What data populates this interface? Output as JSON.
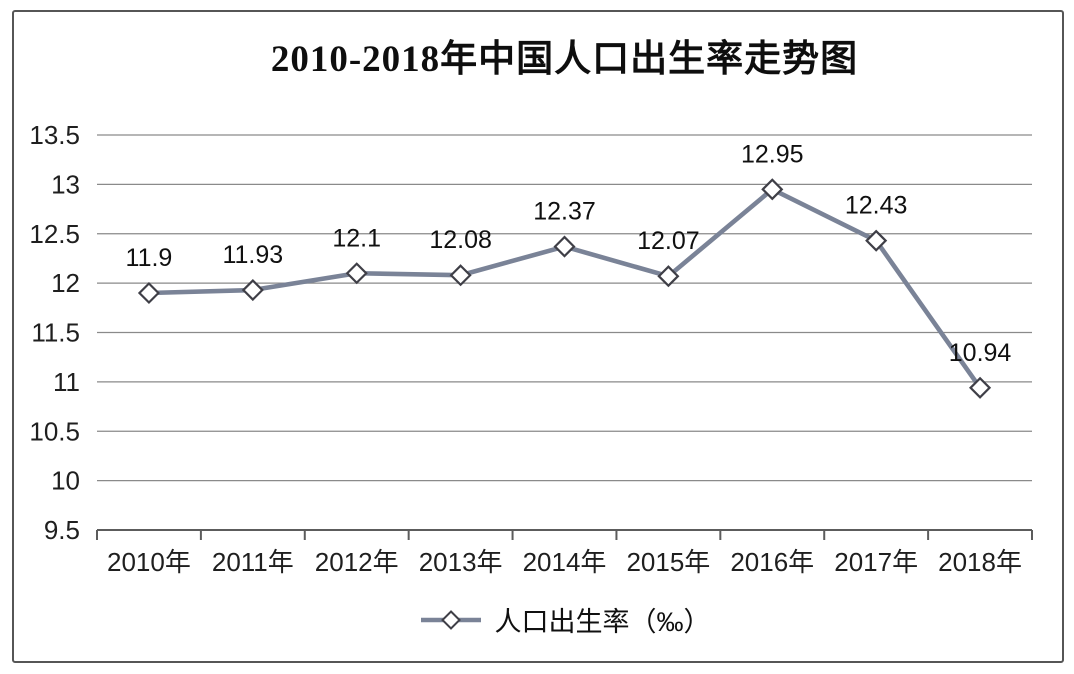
{
  "page": {
    "background_color": "#ffffff",
    "frame_border_color": "#565656"
  },
  "chart_data": {
    "type": "line",
    "title": "2010-2018年中国人口出生率走势图",
    "categories": [
      "2010年",
      "2011年",
      "2012年",
      "2013年",
      "2014年",
      "2015年",
      "2016年",
      "2017年",
      "2018年"
    ],
    "series": [
      {
        "name": "人口出生率（‰）",
        "values": [
          11.9,
          11.93,
          12.1,
          12.08,
          12.37,
          12.07,
          12.95,
          12.43,
          10.94
        ],
        "point_labels": [
          "11.9",
          "11.93",
          "12.1",
          "12.08",
          "12.37",
          "12.07",
          "12.95",
          "12.43",
          "10.94"
        ]
      }
    ],
    "xlabel": "",
    "ylabel": "",
    "ylim": [
      9.5,
      13.5
    ],
    "y_ticks": [
      "13.5",
      "13",
      "12.5",
      "12",
      "11.5",
      "11",
      "10.5",
      "10",
      "9.5"
    ],
    "grid": "horizontal",
    "legend_position": "bottom",
    "legend_marker": "line-diamond-icon",
    "colors": {
      "line": "#7a8397",
      "marker_fill": "#ffffff",
      "marker_stroke": "#3f3f47",
      "grid": "#8a8a8a",
      "axis": "#5c5c5c",
      "text": "#1f1f1f",
      "label_text": "#101010"
    }
  }
}
